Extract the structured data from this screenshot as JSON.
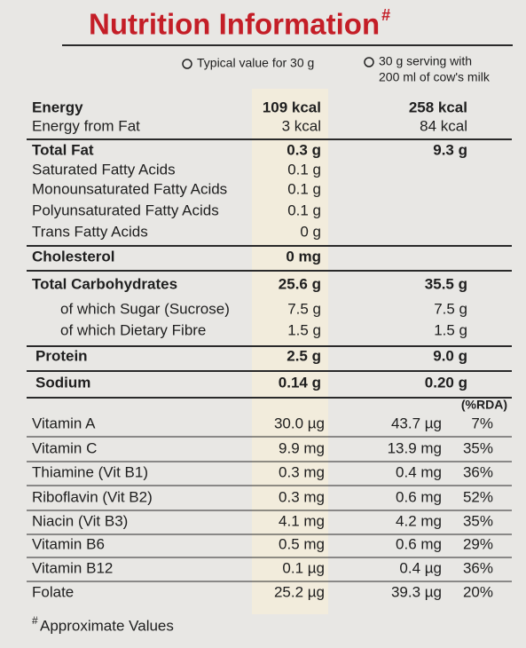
{
  "title": "Nutrition Information",
  "title_mark": "#",
  "column_headers": {
    "typical": "Typical value for 30 g",
    "with_milk": [
      "30 g serving with",
      "200 ml of cow's milk"
    ],
    "rda": "(%RDA)"
  },
  "sections": [
    {
      "rows": [
        {
          "label": "Energy",
          "typical": "109 kcal",
          "with_milk": "258 kcal"
        },
        {
          "label": "Energy from Fat",
          "typical": "3 kcal",
          "with_milk": "84 kcal"
        }
      ]
    },
    {
      "rows": [
        {
          "label": "Total Fat",
          "typical": "0.3 g",
          "with_milk": "9.3 g"
        },
        {
          "label": "Saturated Fatty Acids",
          "typical": "0.1 g"
        },
        {
          "label": "Monounsaturated Fatty Acids",
          "typical": "0.1 g"
        },
        {
          "label": "Polyunsaturated Fatty Acids",
          "typical": "0.1 g"
        },
        {
          "label": "Trans Fatty Acids",
          "typical": "0 g"
        }
      ]
    },
    {
      "rows": [
        {
          "label": "Cholesterol",
          "typical": "0 mg"
        }
      ]
    },
    {
      "rows": [
        {
          "label": "Total Carbohydrates",
          "typical": "25.6 g",
          "with_milk": "35.5 g"
        },
        {
          "label": "of which Sugar (Sucrose)",
          "typical": "7.5 g",
          "with_milk": "7.5 g"
        },
        {
          "label": "of which Dietary Fibre",
          "typical": "1.5 g",
          "with_milk": "1.5 g"
        }
      ]
    },
    {
      "rows": [
        {
          "label": "Protein",
          "typical": "2.5 g",
          "with_milk": "9.0 g"
        }
      ]
    },
    {
      "rows": [
        {
          "label": "Sodium",
          "typical": "0.14 g",
          "with_milk": "0.20 g"
        }
      ]
    }
  ],
  "vitamins": [
    {
      "label": "Vitamin A",
      "typical": "30.0 µg",
      "with_milk": "43.7 µg",
      "rda": "7%"
    },
    {
      "label": "Vitamin C",
      "typical": "9.9 mg",
      "with_milk": "13.9 mg",
      "rda": "35%"
    },
    {
      "label": "Thiamine (Vit B1)",
      "typical": "0.3 mg",
      "with_milk": "0.4 mg",
      "rda": "36%"
    },
    {
      "label": "Riboflavin (Vit B2)",
      "typical": "0.3 mg",
      "with_milk": "0.6 mg",
      "rda": "52%"
    },
    {
      "label": "Niacin (Vit B3)",
      "typical": "4.1 mg",
      "with_milk": "4.2 mg",
      "rda": "35%"
    },
    {
      "label": "Vitamin B6",
      "typical": "0.5 mg",
      "with_milk": "0.6 mg",
      "rda": "29%"
    },
    {
      "label": "Vitamin B12",
      "typical": "0.1 µg",
      "with_milk": "0.4 µg",
      "rda": "36%"
    },
    {
      "label": "Folate",
      "typical": "25.2 µg",
      "with_milk": "39.3 µg",
      "rda": "20%"
    }
  ],
  "footnote": {
    "mark": "#",
    "text": "Approximate Values"
  }
}
